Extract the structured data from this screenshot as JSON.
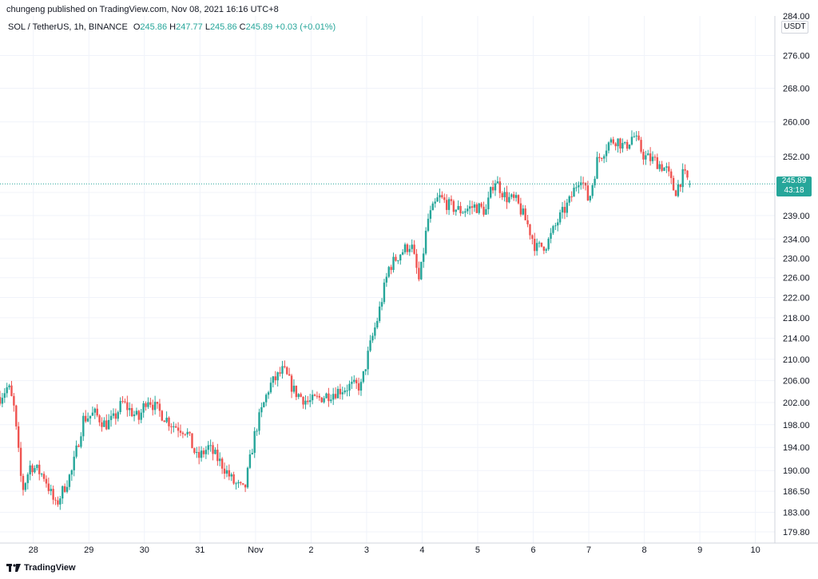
{
  "header": {
    "publisher_text": "chungeng published on TradingView.com, Nov 08, 2021 16:16 UTC+8"
  },
  "legend": {
    "symbol": "SOL / TetherUS, 1h, BINANCE",
    "o_label": "O",
    "o_value": "245.86",
    "h_label": "H",
    "h_value": "247.77",
    "l_label": "L",
    "l_value": "245.86",
    "c_label": "C",
    "c_value": "245.89",
    "change": "+0.03 (+0.01%)"
  },
  "axis": {
    "currency": "USDT",
    "last_price": "245.89",
    "countdown": "43:18",
    "top_cut_label": "284.00"
  },
  "footer": {
    "brand": "TradingView"
  },
  "colors": {
    "up": "#26a69a",
    "down": "#ef5350",
    "grid": "#f0f3fa",
    "text": "#131722"
  },
  "chart_data": {
    "type": "candlestick",
    "symbol": "SOL / TetherUS",
    "interval": "1h",
    "exchange": "BINANCE",
    "y_scale": "log",
    "ylim": [
      178,
      286
    ],
    "y_ticks": [
      179.8,
      183.0,
      186.5,
      190.0,
      194.0,
      198.0,
      202.0,
      206.0,
      210.0,
      214.0,
      218.0,
      222.0,
      226.0,
      230.0,
      234.0,
      239.0,
      244.0,
      252.0,
      260.0,
      268.0,
      276.0
    ],
    "y_tick_labels": [
      "179.80",
      "183.00",
      "186.50",
      "190.00",
      "194.00",
      "198.00",
      "202.00",
      "206.00",
      "210.00",
      "214.00",
      "218.00",
      "222.00",
      "226.00",
      "230.00",
      "234.00",
      "239.00",
      "",
      "252.00",
      "260.00",
      "268.00",
      "276.00"
    ],
    "x_labels": [
      "28",
      "29",
      "30",
      "31",
      "Nov",
      "2",
      "3",
      "4",
      "5",
      "6",
      "7",
      "8",
      "9",
      "10"
    ],
    "x_label_days": [
      0,
      1,
      2,
      3,
      4,
      5,
      6,
      7,
      8,
      9,
      10,
      11,
      12,
      13
    ],
    "x_range_days": [
      -0.6,
      13.35
    ],
    "last_price": 245.89,
    "day_close_path": [
      {
        "d": -0.6,
        "c": 203
      },
      {
        "d": -0.45,
        "c": 205
      },
      {
        "d": -0.35,
        "c": 201
      },
      {
        "d": -0.2,
        "c": 186.5
      },
      {
        "d": -0.05,
        "c": 191
      },
      {
        "d": 0.2,
        "c": 189
      },
      {
        "d": 0.4,
        "c": 184
      },
      {
        "d": 0.55,
        "c": 187
      },
      {
        "d": 0.7,
        "c": 190
      },
      {
        "d": 0.9,
        "c": 199
      },
      {
        "d": 1.1,
        "c": 200
      },
      {
        "d": 1.3,
        "c": 198
      },
      {
        "d": 1.45,
        "c": 199
      },
      {
        "d": 1.6,
        "c": 202
      },
      {
        "d": 1.9,
        "c": 199
      },
      {
        "d": 2.05,
        "c": 203
      },
      {
        "d": 2.2,
        "c": 201
      },
      {
        "d": 2.5,
        "c": 198
      },
      {
        "d": 2.75,
        "c": 197
      },
      {
        "d": 2.95,
        "c": 192
      },
      {
        "d": 3.15,
        "c": 194
      },
      {
        "d": 3.4,
        "c": 191
      },
      {
        "d": 3.6,
        "c": 188
      },
      {
        "d": 3.8,
        "c": 186.5
      },
      {
        "d": 4.0,
        "c": 197
      },
      {
        "d": 4.25,
        "c": 205
      },
      {
        "d": 4.5,
        "c": 208
      },
      {
        "d": 4.7,
        "c": 204
      },
      {
        "d": 4.95,
        "c": 202
      },
      {
        "d": 5.2,
        "c": 203
      },
      {
        "d": 5.45,
        "c": 204
      },
      {
        "d": 5.7,
        "c": 205
      },
      {
        "d": 5.9,
        "c": 205
      },
      {
        "d": 6.05,
        "c": 212
      },
      {
        "d": 6.2,
        "c": 218
      },
      {
        "d": 6.4,
        "c": 228
      },
      {
        "d": 6.6,
        "c": 231
      },
      {
        "d": 6.8,
        "c": 233
      },
      {
        "d": 6.95,
        "c": 225
      },
      {
        "d": 7.1,
        "c": 238
      },
      {
        "d": 7.3,
        "c": 243
      },
      {
        "d": 7.5,
        "c": 241
      },
      {
        "d": 7.7,
        "c": 240
      },
      {
        "d": 7.95,
        "c": 241
      },
      {
        "d": 8.15,
        "c": 240
      },
      {
        "d": 8.3,
        "c": 247
      },
      {
        "d": 8.5,
        "c": 243
      },
      {
        "d": 8.7,
        "c": 242
      },
      {
        "d": 8.9,
        "c": 237
      },
      {
        "d": 9.05,
        "c": 232
      },
      {
        "d": 9.25,
        "c": 233
      },
      {
        "d": 9.45,
        "c": 238
      },
      {
        "d": 9.65,
        "c": 242
      },
      {
        "d": 9.85,
        "c": 248
      },
      {
        "d": 10.0,
        "c": 242
      },
      {
        "d": 10.15,
        "c": 251
      },
      {
        "d": 10.35,
        "c": 255
      },
      {
        "d": 10.5,
        "c": 256
      },
      {
        "d": 10.65,
        "c": 254
      },
      {
        "d": 10.8,
        "c": 257
      },
      {
        "d": 11.0,
        "c": 252
      },
      {
        "d": 11.2,
        "c": 251
      },
      {
        "d": 11.4,
        "c": 249
      },
      {
        "d": 11.55,
        "c": 244
      },
      {
        "d": 11.7,
        "c": 248
      },
      {
        "d": 11.85,
        "c": 245.89
      }
    ]
  }
}
